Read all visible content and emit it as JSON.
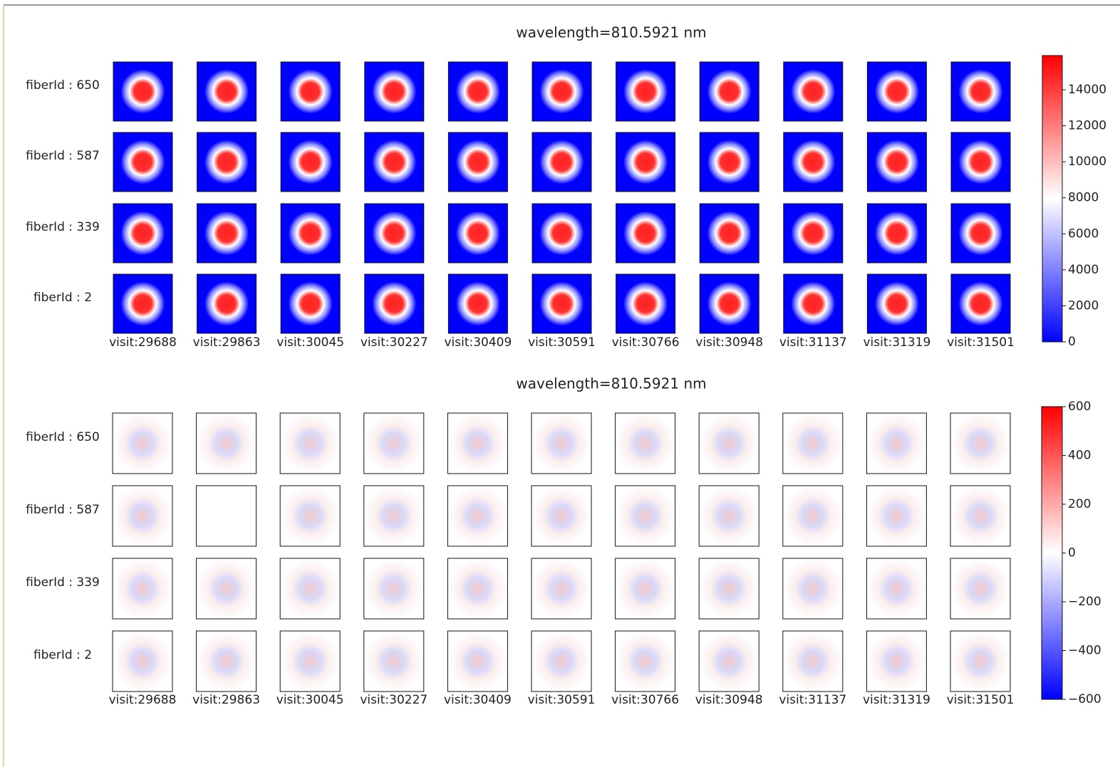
{
  "chart_data": [
    {
      "type": "heatmap",
      "title": "wavelength=810.5921 nm",
      "rows": [
        "fiberId : 650",
        "fiberId : 587",
        "fiberId : 339",
        "fiberId : 2"
      ],
      "columns": [
        "visit:29688",
        "visit:29863",
        "visit:30045",
        "visit:30227",
        "visit:30409",
        "visit:30591",
        "visit:30766",
        "visit:30948",
        "visit:31137",
        "visit:31319",
        "visit:31501"
      ],
      "colors": [
        "#0000ff",
        "#ffffff",
        "#ff0000"
      ],
      "clim": [
        0,
        15900
      ],
      "cticks": [
        0,
        2000,
        4000,
        6000,
        8000,
        10000,
        12000,
        14000
      ]
    },
    {
      "type": "heatmap",
      "title": "wavelength=810.5921 nm",
      "rows": [
        "fiberId : 650",
        "fiberId : 587",
        "fiberId : 339",
        "fiberId : 2"
      ],
      "columns": [
        "visit:29688",
        "visit:29863",
        "visit:30045",
        "visit:30227",
        "visit:30409",
        "visit:30591",
        "visit:30766",
        "visit:30948",
        "visit:31137",
        "visit:31319",
        "visit:31501"
      ],
      "colors": [
        "#0000ff",
        "#ffffff",
        "#ff0000"
      ],
      "clim": [
        -600,
        600
      ],
      "cticks": [
        {
          "value": -600,
          "label": "−600"
        },
        {
          "value": -400,
          "label": "−400"
        },
        {
          "value": -200,
          "label": "−200"
        },
        0,
        200,
        400,
        600
      ]
    }
  ]
}
